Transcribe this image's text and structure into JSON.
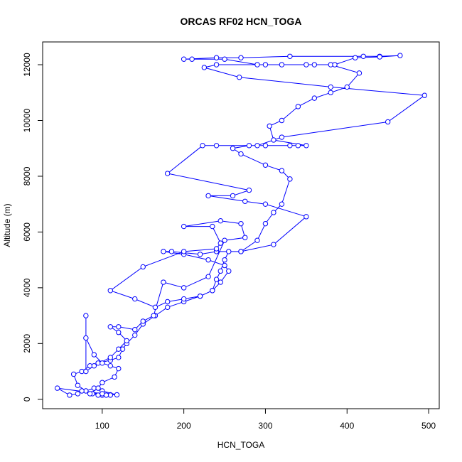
{
  "chart_data": {
    "type": "line",
    "title": "ORCAS RF02 HCN_TOGA",
    "xlabel": "HCN_TOGA",
    "ylabel": "Altitude (m)",
    "color": "#0000ff",
    "x": [
      100,
      95,
      88,
      110,
      118,
      100,
      90,
      80,
      70,
      65,
      75,
      85,
      95,
      110,
      120,
      125,
      130,
      140,
      150,
      165,
      180,
      200,
      220,
      235,
      240,
      245,
      250,
      255,
      270,
      290,
      300,
      310,
      320,
      330,
      320,
      300,
      270,
      260,
      280,
      300,
      330,
      340,
      350,
      310,
      305,
      320,
      340,
      360,
      380,
      400,
      415,
      380,
      350,
      320,
      290,
      250,
      210,
      200,
      240,
      270,
      330,
      420,
      440,
      465,
      440,
      410,
      385,
      360,
      300,
      240,
      225,
      268,
      380,
      495,
      450,
      320,
      290,
      240,
      223,
      180,
      280,
      260,
      230,
      275,
      300,
      350,
      310,
      270,
      240,
      220,
      185,
      175,
      200,
      230,
      250,
      255,
      245,
      235,
      220,
      200,
      180,
      165,
      140,
      110,
      150,
      200,
      240,
      245,
      235,
      200,
      245,
      270,
      275,
      250,
      230,
      200,
      175,
      163,
      150,
      140,
      120,
      110,
      120,
      130,
      120,
      110,
      90,
      80,
      80,
      80,
      90,
      100,
      110,
      120,
      115,
      100,
      95,
      85,
      110,
      45,
      60,
      70,
      75,
      100,
      105
    ],
    "values": [
      150,
      150,
      200,
      160,
      160,
      300,
      400,
      300,
      500,
      900,
      1000,
      1200,
      1300,
      1400,
      1500,
      1800,
      2000,
      2300,
      2700,
      3000,
      3300,
      3500,
      3700,
      3900,
      4300,
      4600,
      5000,
      5300,
      5300,
      5700,
      6300,
      6700,
      7000,
      7900,
      8200,
      8400,
      8800,
      9000,
      9100,
      9100,
      9100,
      9100,
      9100,
      9300,
      9800,
      10000,
      10500,
      10800,
      11000,
      11200,
      11700,
      12000,
      12000,
      12000,
      12000,
      12200,
      12200,
      12200,
      12250,
      12250,
      12300,
      12300,
      12300,
      12330,
      12280,
      12250,
      12000,
      12000,
      12000,
      12000,
      11900,
      11550,
      11200,
      10900,
      9950,
      9400,
      9100,
      9100,
      9100,
      8100,
      7500,
      7300,
      7300,
      7100,
      7000,
      6550,
      5550,
      5300,
      5300,
      5200,
      5300,
      5300,
      5200,
      5000,
      4800,
      4600,
      4200,
      3900,
      3700,
      3600,
      3500,
      3300,
      3600,
      3900,
      4750,
      5300,
      5400,
      5600,
      6200,
      6200,
      6400,
      6300,
      5800,
      5700,
      4400,
      4000,
      4200,
      3000,
      2800,
      2500,
      2600,
      2600,
      2400,
      2100,
      1800,
      1500,
      1200,
      1000,
      3000,
      2200,
      1600,
      1300,
      1200,
      1100,
      800,
      600,
      400,
      200,
      150,
      400,
      150,
      200,
      300,
      200,
      150
    ],
    "xlim": [
      27,
      513
    ],
    "ylim": [
      -337,
      12817
    ],
    "xticks": [
      100,
      200,
      300,
      400,
      500
    ],
    "yticks": [
      0,
      2000,
      4000,
      6000,
      8000,
      10000,
      12000
    ]
  }
}
